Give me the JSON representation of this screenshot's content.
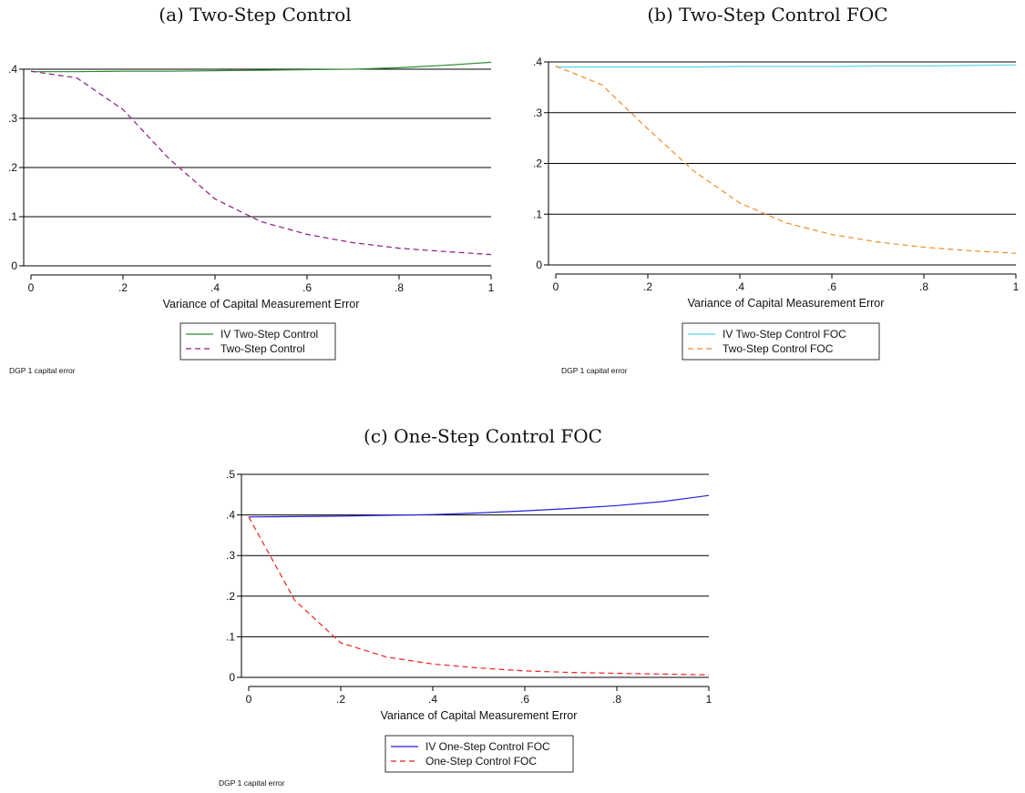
{
  "chart_data": [
    {
      "type": "line",
      "title": "(a) Two-Step Control",
      "xlabel": "Variance of Capital Measurement Error",
      "ylabel": "",
      "xlim": [
        0,
        1
      ],
      "ylim": [
        0,
        0.4
      ],
      "xticks": [
        0,
        0.2,
        0.4,
        0.6,
        0.8,
        1
      ],
      "xtick_labels": [
        "0",
        ".2",
        ".4",
        ".6",
        ".8",
        "1"
      ],
      "yticks": [
        0,
        0.1,
        0.2,
        0.3,
        0.4
      ],
      "ytick_labels": [
        "0",
        ".1",
        ".2",
        ".3",
        ".4"
      ],
      "grid": true,
      "legend_position": "bottom",
      "note": "DGP 1 capital error",
      "x": [
        0,
        0.1,
        0.2,
        0.3,
        0.4,
        0.5,
        0.6,
        0.7,
        0.8,
        0.9,
        1
      ],
      "series": [
        {
          "name": "IV Two-Step Control",
          "color": "#2e8b2e",
          "dash": "solid",
          "values": [
            0.395,
            0.395,
            0.396,
            0.396,
            0.397,
            0.398,
            0.399,
            0.4,
            0.403,
            0.408,
            0.414
          ]
        },
        {
          "name": "Two-Step Control",
          "color": "#8b1a8b",
          "dash": "dashed",
          "values": [
            0.396,
            0.382,
            0.318,
            0.218,
            0.136,
            0.09,
            0.064,
            0.047,
            0.036,
            0.029,
            0.023
          ]
        }
      ]
    },
    {
      "type": "line",
      "title": "(b) Two-Step Control FOC",
      "xlabel": "Variance of Capital Measurement Error",
      "ylabel": "",
      "xlim": [
        0,
        1
      ],
      "ylim": [
        0,
        0.4
      ],
      "xticks": [
        0,
        0.2,
        0.4,
        0.6,
        0.8,
        1
      ],
      "xtick_labels": [
        "0",
        ".2",
        ".4",
        ".6",
        ".8",
        "1"
      ],
      "yticks": [
        0,
        0.1,
        0.2,
        0.3,
        0.4
      ],
      "ytick_labels": [
        "0",
        ".1",
        ".2",
        ".3",
        ".4"
      ],
      "grid": true,
      "legend_position": "bottom",
      "note": "DGP 1 capital error",
      "x": [
        0,
        0.1,
        0.2,
        0.3,
        0.4,
        0.5,
        0.6,
        0.7,
        0.8,
        0.9,
        1
      ],
      "series": [
        {
          "name": "IV Two-Step Control FOC",
          "color": "#5ad6e8",
          "dash": "solid",
          "values": [
            0.39,
            0.39,
            0.39,
            0.39,
            0.391,
            0.391,
            0.391,
            0.392,
            0.392,
            0.393,
            0.394
          ]
        },
        {
          "name": "Two-Step Control FOC",
          "color": "#f08c28",
          "dash": "dashed",
          "values": [
            0.392,
            0.355,
            0.268,
            0.185,
            0.122,
            0.083,
            0.06,
            0.045,
            0.035,
            0.028,
            0.023
          ]
        }
      ]
    },
    {
      "type": "line",
      "title": "(c) One-Step Control FOC",
      "xlabel": "Variance of Capital Measurement Error",
      "ylabel": "",
      "xlim": [
        0,
        1
      ],
      "ylim": [
        0,
        0.5
      ],
      "xticks": [
        0,
        0.2,
        0.4,
        0.6,
        0.8,
        1
      ],
      "xtick_labels": [
        "0",
        ".2",
        ".4",
        ".6",
        ".8",
        "1"
      ],
      "yticks": [
        0,
        0.1,
        0.2,
        0.3,
        0.4,
        0.5
      ],
      "ytick_labels": [
        "0",
        ".1",
        ".2",
        ".3",
        ".4",
        ".5"
      ],
      "grid": true,
      "legend_position": "bottom",
      "note": "DGP 1 capital error",
      "x": [
        0,
        0.1,
        0.2,
        0.3,
        0.4,
        0.5,
        0.6,
        0.7,
        0.8,
        0.9,
        1
      ],
      "series": [
        {
          "name": "IV One-Step Control FOC",
          "color": "#2222dd",
          "dash": "solid",
          "values": [
            0.395,
            0.396,
            0.397,
            0.399,
            0.401,
            0.405,
            0.41,
            0.416,
            0.423,
            0.433,
            0.448
          ]
        },
        {
          "name": "One-Step Control FOC",
          "color": "#ee2222",
          "dash": "dashed",
          "values": [
            0.395,
            0.19,
            0.085,
            0.05,
            0.033,
            0.023,
            0.016,
            0.012,
            0.01,
            0.008,
            0.006
          ]
        }
      ]
    }
  ]
}
